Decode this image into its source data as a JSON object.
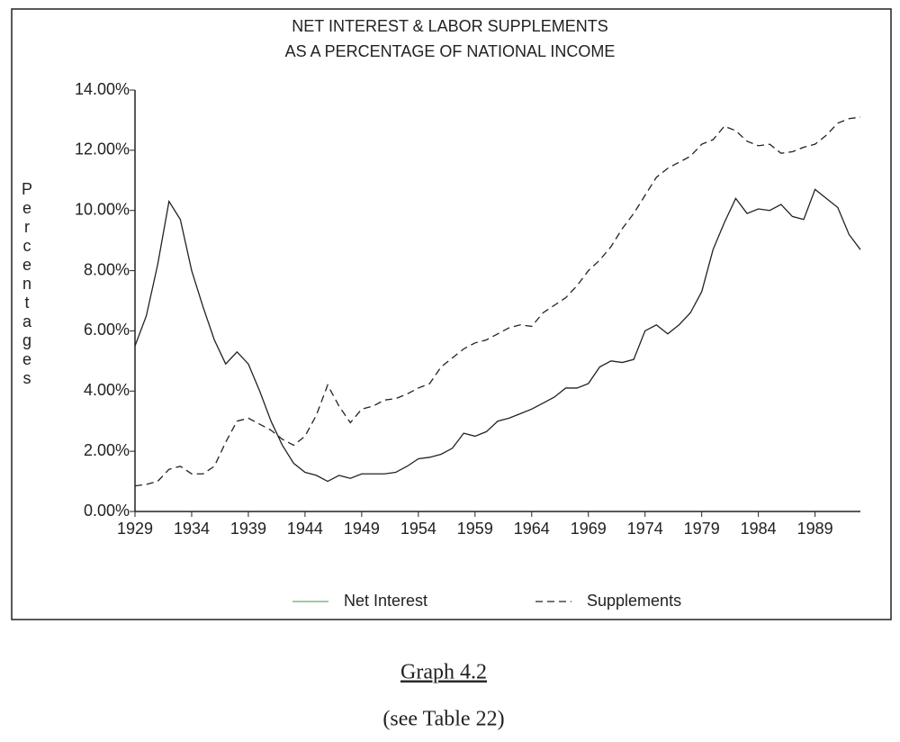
{
  "chart_data": {
    "type": "line",
    "title": [
      "NET INTEREST & LABOR SUPPLEMENTS",
      "AS A PERCENTAGE OF NATIONAL INCOME"
    ],
    "y_label": "Percentages",
    "x": [
      1929,
      1930,
      1931,
      1932,
      1933,
      1934,
      1935,
      1936,
      1937,
      1938,
      1939,
      1940,
      1941,
      1942,
      1943,
      1944,
      1945,
      1946,
      1947,
      1948,
      1949,
      1950,
      1951,
      1952,
      1953,
      1954,
      1955,
      1956,
      1957,
      1958,
      1959,
      1960,
      1961,
      1962,
      1963,
      1964,
      1965,
      1966,
      1967,
      1968,
      1969,
      1970,
      1971,
      1972,
      1973,
      1974,
      1975,
      1976,
      1977,
      1978,
      1979,
      1980,
      1981,
      1982,
      1983,
      1984,
      1985,
      1986,
      1987,
      1988,
      1989,
      1990,
      1991,
      1992,
      1993
    ],
    "series": [
      {
        "name": "Net Interest",
        "color": "#222222",
        "legend_color": "#6aaa6a",
        "dash": "solid",
        "values": [
          5.5,
          6.5,
          8.2,
          10.3,
          9.7,
          8.0,
          6.8,
          5.7,
          4.9,
          5.3,
          4.9,
          4.0,
          3.0,
          2.2,
          1.6,
          1.3,
          1.2,
          1.0,
          1.2,
          1.1,
          1.25,
          1.25,
          1.25,
          1.3,
          1.5,
          1.75,
          1.8,
          1.9,
          2.1,
          2.6,
          2.5,
          2.65,
          3.0,
          3.1,
          3.25,
          3.4,
          3.6,
          3.8,
          4.1,
          4.1,
          4.25,
          4.8,
          5.0,
          4.95,
          5.05,
          6.0,
          6.2,
          5.9,
          6.2,
          6.6,
          7.3,
          8.7,
          9.6,
          10.4,
          9.9,
          10.05,
          10.0,
          10.2,
          9.8,
          9.7,
          10.7,
          10.4,
          10.1,
          9.2,
          8.7
        ]
      },
      {
        "name": "Supplements",
        "color": "#222222",
        "legend_color": "#222222",
        "dash": "dashed",
        "values": [
          0.85,
          0.9,
          1.0,
          1.4,
          1.5,
          1.25,
          1.25,
          1.5,
          2.3,
          3.0,
          3.1,
          2.9,
          2.7,
          2.4,
          2.2,
          2.5,
          3.2,
          4.2,
          3.5,
          2.95,
          3.4,
          3.5,
          3.7,
          3.75,
          3.9,
          4.1,
          4.25,
          4.8,
          5.1,
          5.4,
          5.6,
          5.7,
          5.9,
          6.1,
          6.2,
          6.15,
          6.6,
          6.85,
          7.1,
          7.5,
          8.0,
          8.35,
          8.8,
          9.4,
          9.9,
          10.5,
          11.1,
          11.4,
          11.6,
          11.8,
          12.2,
          12.35,
          12.8,
          12.65,
          12.3,
          12.15,
          12.2,
          11.9,
          11.95,
          12.1,
          12.2,
          12.5,
          12.9,
          13.05,
          13.1
        ]
      }
    ],
    "xlim": [
      1929,
      1993
    ],
    "xticks": [
      1929,
      1934,
      1939,
      1944,
      1949,
      1954,
      1959,
      1964,
      1969,
      1974,
      1979,
      1984,
      1989
    ],
    "ylim": [
      0,
      14
    ],
    "yticks": [
      {
        "value": 0,
        "label": "0.00%"
      },
      {
        "value": 2,
        "label": "2.00%"
      },
      {
        "value": 4,
        "label": "4.00%"
      },
      {
        "value": 6,
        "label": "6.00%"
      },
      {
        "value": 8,
        "label": "8.00%"
      },
      {
        "value": 10,
        "label": "10.00%"
      },
      {
        "value": 12,
        "label": "12.00%"
      },
      {
        "value": 14,
        "label": "14.00%"
      }
    ],
    "grid": false,
    "legend": "bottom"
  },
  "caption": "Graph 4.2",
  "note": "(see Table 22)"
}
